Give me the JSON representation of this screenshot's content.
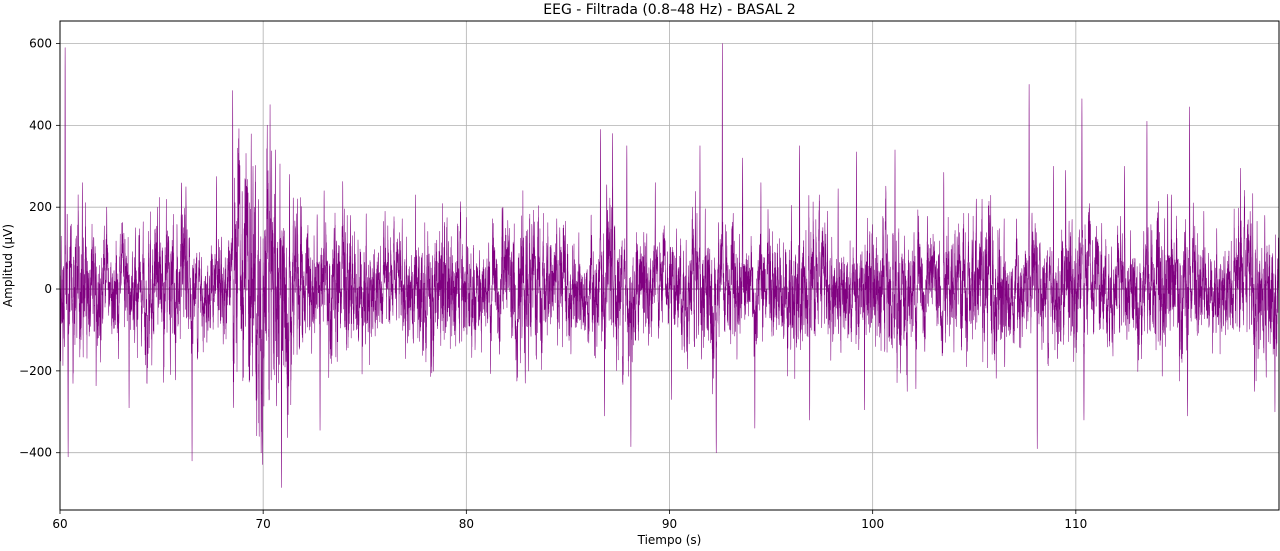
{
  "chart_data": {
    "type": "line",
    "title": "EEG - Filtrada (0.8–48 Hz) - BASAL 2",
    "xlabel": "Tiempo (s)",
    "ylabel": "Amplitud (µV)",
    "xlim": [
      60,
      120
    ],
    "ylim": [
      -540,
      655
    ],
    "xticks": [
      60,
      70,
      80,
      90,
      100,
      110
    ],
    "yticks": [
      -400,
      -200,
      0,
      200,
      400,
      600
    ],
    "xtick_labels": [
      "60",
      "70",
      "80",
      "90",
      "100",
      "110"
    ],
    "ytick_labels": [
      "−400",
      "−200",
      "0",
      "200",
      "400",
      "600"
    ],
    "grid": true,
    "line_color": "#800080",
    "series": [
      {
        "sample_rate_hz": 250,
        "peaks": [
          [
            60.25,
            590
          ],
          [
            60.4,
            -410
          ],
          [
            61.1,
            260
          ],
          [
            62.3,
            200
          ],
          [
            63.4,
            -290
          ],
          [
            64.8,
            200
          ],
          [
            66.2,
            250
          ],
          [
            66.5,
            -420
          ],
          [
            67.7,
            275
          ],
          [
            68.5,
            485
          ],
          [
            69.5,
            300
          ],
          [
            69.9,
            -400
          ],
          [
            70.6,
            340
          ],
          [
            70.9,
            -485
          ],
          [
            71.3,
            280
          ],
          [
            72.8,
            -345
          ],
          [
            73.0,
            240
          ],
          [
            74.3,
            180
          ],
          [
            76.0,
            190
          ],
          [
            77.5,
            230
          ],
          [
            78.3,
            -205
          ],
          [
            80.0,
            175
          ],
          [
            81.8,
            200
          ],
          [
            82.9,
            -230
          ],
          [
            84.6,
            150
          ],
          [
            86.6,
            390
          ],
          [
            86.8,
            -310
          ],
          [
            87.2,
            380
          ],
          [
            87.9,
            350
          ],
          [
            88.1,
            -385
          ],
          [
            89.3,
            260
          ],
          [
            90.1,
            -270
          ],
          [
            91.5,
            350
          ],
          [
            92.3,
            -400
          ],
          [
            92.6,
            600
          ],
          [
            93.6,
            320
          ],
          [
            94.2,
            -340
          ],
          [
            94.5,
            260
          ],
          [
            96.4,
            350
          ],
          [
            96.9,
            -320
          ],
          [
            98.3,
            245
          ],
          [
            99.2,
            335
          ],
          [
            99.6,
            -295
          ],
          [
            101.1,
            340
          ],
          [
            101.7,
            -250
          ],
          [
            103.5,
            285
          ],
          [
            105.1,
            220
          ],
          [
            106.5,
            -190
          ],
          [
            107.7,
            500
          ],
          [
            108.1,
            -390
          ],
          [
            108.9,
            300
          ],
          [
            109.5,
            290
          ],
          [
            110.3,
            465
          ],
          [
            110.4,
            -320
          ],
          [
            112.4,
            300
          ],
          [
            113.5,
            410
          ],
          [
            114.7,
            230
          ],
          [
            115.6,
            445
          ],
          [
            115.5,
            -310
          ],
          [
            116.3,
            190
          ],
          [
            118.1,
            295
          ],
          [
            118.8,
            -250
          ],
          [
            119.3,
            180
          ],
          [
            119.8,
            -300
          ]
        ]
      }
    ]
  }
}
